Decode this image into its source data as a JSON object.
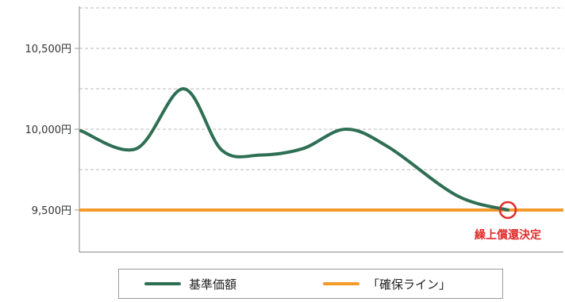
{
  "chart_data": {
    "type": "line",
    "y_ticks": [
      {
        "value": 10500,
        "label": "10,500円"
      },
      {
        "value": 10000,
        "label": "10,000円"
      },
      {
        "value": 9500,
        "label": "9,500円"
      }
    ],
    "ylim": [
      9240,
      10760
    ],
    "grid": true,
    "series": [
      {
        "name": "基準価額",
        "color": "#2e6f54",
        "x": [
          0,
          0.13,
          0.24,
          0.33,
          0.42,
          0.52,
          0.62,
          0.72,
          0.88,
          1.0
        ],
        "values": [
          9990,
          9880,
          10250,
          9870,
          9840,
          9880,
          10000,
          9890,
          9590,
          9500
        ]
      },
      {
        "name": "「確保ライン」",
        "color": "#f39a2a",
        "constant": 9500
      }
    ],
    "annotation": {
      "text": "繰上償還決定",
      "color": "#e02b2b",
      "at_value": 9500
    },
    "legend": {
      "position": "bottom-center",
      "entries": [
        "基準価額",
        "「確保ライン」"
      ]
    }
  }
}
